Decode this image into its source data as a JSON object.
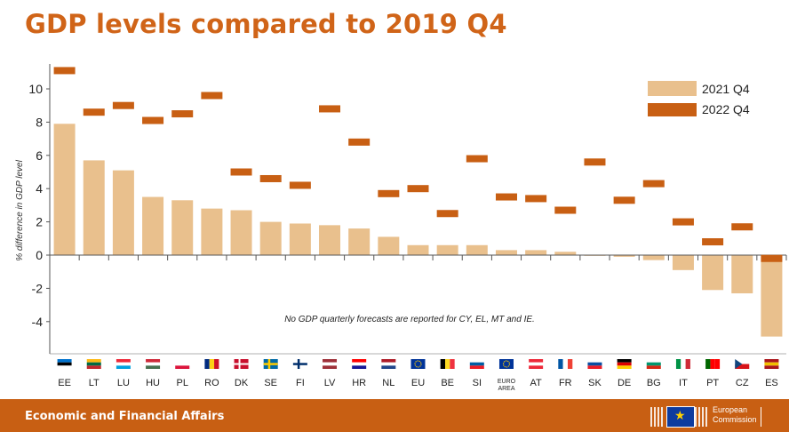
{
  "title": "GDP levels compared to 2019 Q4",
  "footer": {
    "text": "Economic and Financial Affairs",
    "logo_line1": "European",
    "logo_line2": "Commission"
  },
  "colors": {
    "title": "#d06418",
    "series_2021": "#e9c08d",
    "series_2022": "#c85f13",
    "footer_bg": "#c85f13"
  },
  "chart_data": {
    "type": "bar",
    "title": "GDP levels compared to 2019 Q4",
    "xlabel": "",
    "ylabel": "% difference in GDP level",
    "ylim": [
      -5,
      11.5
    ],
    "yticks": [
      -4,
      -2,
      0,
      2,
      4,
      6,
      8,
      10
    ],
    "grid": false,
    "legend_position": "top-right",
    "annotation": "No GDP quarterly forecasts are reported for CY, EL, MT and IE.",
    "categories": [
      "EE",
      "LT",
      "LU",
      "HU",
      "PL",
      "RO",
      "DK",
      "SE",
      "FI",
      "LV",
      "HR",
      "NL",
      "EU",
      "BE",
      "SI",
      "EURO AREA",
      "AT",
      "FR",
      "SK",
      "DE",
      "BG",
      "IT",
      "PT",
      "CZ",
      "ES"
    ],
    "series": [
      {
        "name": "2021 Q4",
        "marker": "bar",
        "values": [
          7.9,
          5.7,
          5.1,
          3.5,
          3.3,
          2.8,
          2.7,
          2.0,
          1.9,
          1.8,
          1.6,
          1.1,
          0.6,
          0.6,
          0.6,
          0.3,
          0.3,
          0.2,
          0.0,
          -0.1,
          -0.3,
          -0.9,
          -2.1,
          -2.3,
          -4.9
        ]
      },
      {
        "name": "2022 Q4",
        "marker": "dash",
        "values": [
          11.1,
          8.6,
          9.0,
          8.1,
          8.5,
          9.6,
          5.0,
          4.6,
          4.2,
          8.8,
          6.8,
          3.7,
          4.0,
          2.5,
          5.8,
          3.5,
          3.4,
          2.7,
          5.6,
          3.3,
          4.3,
          2.0,
          0.8,
          1.7,
          -0.2
        ]
      }
    ]
  }
}
